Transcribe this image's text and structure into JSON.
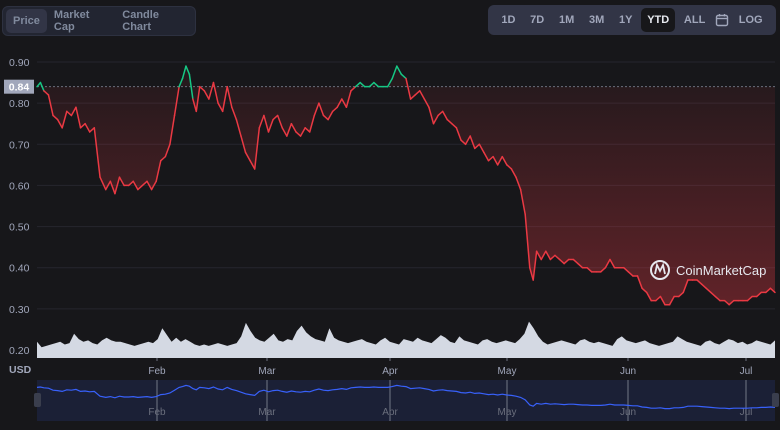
{
  "tabs": [
    {
      "label": "Price",
      "active": true
    },
    {
      "label": "Market Cap",
      "active": false
    },
    {
      "label": "Candle Chart",
      "active": false
    }
  ],
  "ranges": [
    {
      "label": "1D",
      "active": false
    },
    {
      "label": "7D",
      "active": false
    },
    {
      "label": "1M",
      "active": false
    },
    {
      "label": "3M",
      "active": false
    },
    {
      "label": "1Y",
      "active": false
    },
    {
      "label": "YTD",
      "active": true
    },
    {
      "label": "ALL",
      "active": false
    },
    {
      "label": "calendar-icon",
      "icon": true
    },
    {
      "label": "LOG",
      "active": false
    }
  ],
  "current_price_label": "0.84",
  "currency_label": "USD",
  "watermark": "CoinMarketCap",
  "colors": {
    "up": "#16c784",
    "down": "#ea3943",
    "volume": "#d4d9e3",
    "navigator_line": "#3861fb",
    "navigator_bg": "#1b2036"
  },
  "chart_data": {
    "type": "line",
    "title": "",
    "xlabel": "",
    "ylabel": "USD",
    "y_ticks": [
      "0.90",
      "0.80",
      "0.70",
      "0.60",
      "0.50",
      "0.40",
      "0.30",
      "0.20"
    ],
    "x_ticks": [
      "Feb",
      "Mar",
      "Apr",
      "May",
      "Jun",
      "Jul"
    ],
    "ylim": [
      0.19,
      0.92
    ],
    "baseline": 0.84,
    "grid": true,
    "series": [
      {
        "name": "Price",
        "points": [
          [
            0,
            0.84
          ],
          [
            3,
            0.85
          ],
          [
            6,
            0.83
          ],
          [
            10,
            0.82
          ],
          [
            14,
            0.77
          ],
          [
            18,
            0.76
          ],
          [
            22,
            0.74
          ],
          [
            26,
            0.78
          ],
          [
            30,
            0.77
          ],
          [
            34,
            0.79
          ],
          [
            38,
            0.74
          ],
          [
            42,
            0.75
          ],
          [
            46,
            0.73
          ],
          [
            50,
            0.74
          ],
          [
            55,
            0.62
          ],
          [
            60,
            0.59
          ],
          [
            64,
            0.61
          ],
          [
            68,
            0.58
          ],
          [
            72,
            0.62
          ],
          [
            76,
            0.6
          ],
          [
            80,
            0.6
          ],
          [
            84,
            0.61
          ],
          [
            88,
            0.59
          ],
          [
            92,
            0.6
          ],
          [
            96,
            0.61
          ],
          [
            100,
            0.59
          ],
          [
            104,
            0.61
          ],
          [
            108,
            0.66
          ],
          [
            112,
            0.67
          ],
          [
            116,
            0.7
          ],
          [
            120,
            0.77
          ],
          [
            124,
            0.84
          ],
          [
            127,
            0.86
          ],
          [
            130,
            0.89
          ],
          [
            133,
            0.87
          ],
          [
            136,
            0.81
          ],
          [
            139,
            0.78
          ],
          [
            142,
            0.84
          ],
          [
            146,
            0.83
          ],
          [
            150,
            0.81
          ],
          [
            154,
            0.85
          ],
          [
            158,
            0.8
          ],
          [
            162,
            0.78
          ],
          [
            166,
            0.84
          ],
          [
            170,
            0.79
          ],
          [
            174,
            0.76
          ],
          [
            178,
            0.72
          ],
          [
            182,
            0.68
          ],
          [
            186,
            0.66
          ],
          [
            190,
            0.64
          ],
          [
            194,
            0.74
          ],
          [
            198,
            0.77
          ],
          [
            202,
            0.73
          ],
          [
            206,
            0.76
          ],
          [
            210,
            0.77
          ],
          [
            214,
            0.74
          ],
          [
            218,
            0.72
          ],
          [
            222,
            0.75
          ],
          [
            226,
            0.73
          ],
          [
            230,
            0.72
          ],
          [
            234,
            0.74
          ],
          [
            238,
            0.73
          ],
          [
            242,
            0.77
          ],
          [
            246,
            0.8
          ],
          [
            250,
            0.77
          ],
          [
            254,
            0.76
          ],
          [
            258,
            0.78
          ],
          [
            262,
            0.79
          ],
          [
            266,
            0.81
          ],
          [
            270,
            0.79
          ],
          [
            274,
            0.83
          ],
          [
            278,
            0.84
          ],
          [
            282,
            0.85
          ],
          [
            286,
            0.84
          ],
          [
            290,
            0.84
          ],
          [
            294,
            0.85
          ],
          [
            298,
            0.84
          ],
          [
            302,
            0.84
          ],
          [
            306,
            0.84
          ],
          [
            310,
            0.86
          ],
          [
            314,
            0.89
          ],
          [
            318,
            0.87
          ],
          [
            322,
            0.86
          ],
          [
            326,
            0.81
          ],
          [
            330,
            0.82
          ],
          [
            334,
            0.83
          ],
          [
            338,
            0.81
          ],
          [
            342,
            0.79
          ],
          [
            346,
            0.75
          ],
          [
            350,
            0.77
          ],
          [
            354,
            0.78
          ],
          [
            358,
            0.76
          ],
          [
            362,
            0.75
          ],
          [
            366,
            0.74
          ],
          [
            370,
            0.71
          ],
          [
            374,
            0.7
          ],
          [
            378,
            0.72
          ],
          [
            382,
            0.69
          ],
          [
            386,
            0.7
          ],
          [
            390,
            0.68
          ],
          [
            394,
            0.66
          ],
          [
            398,
            0.67
          ],
          [
            402,
            0.65
          ],
          [
            406,
            0.67
          ],
          [
            410,
            0.65
          ],
          [
            414,
            0.64
          ],
          [
            418,
            0.62
          ],
          [
            422,
            0.59
          ],
          [
            426,
            0.53
          ],
          [
            430,
            0.4
          ],
          [
            433,
            0.37
          ],
          [
            436,
            0.44
          ],
          [
            440,
            0.42
          ],
          [
            444,
            0.44
          ],
          [
            448,
            0.42
          ],
          [
            452,
            0.43
          ],
          [
            456,
            0.42
          ],
          [
            460,
            0.41
          ],
          [
            464,
            0.42
          ],
          [
            468,
            0.42
          ],
          [
            472,
            0.41
          ],
          [
            476,
            0.4
          ],
          [
            480,
            0.4
          ],
          [
            484,
            0.39
          ],
          [
            488,
            0.39
          ],
          [
            492,
            0.39
          ],
          [
            496,
            0.4
          ],
          [
            500,
            0.42
          ],
          [
            504,
            0.4
          ],
          [
            508,
            0.4
          ],
          [
            512,
            0.4
          ],
          [
            516,
            0.39
          ],
          [
            520,
            0.38
          ],
          [
            524,
            0.38
          ],
          [
            528,
            0.35
          ],
          [
            532,
            0.34
          ],
          [
            536,
            0.32
          ],
          [
            540,
            0.32
          ],
          [
            544,
            0.33
          ],
          [
            548,
            0.31
          ],
          [
            552,
            0.31
          ],
          [
            556,
            0.33
          ],
          [
            560,
            0.33
          ],
          [
            564,
            0.34
          ],
          [
            568,
            0.37
          ],
          [
            572,
            0.37
          ],
          [
            576,
            0.37
          ],
          [
            580,
            0.36
          ],
          [
            584,
            0.35
          ],
          [
            588,
            0.34
          ],
          [
            592,
            0.33
          ],
          [
            596,
            0.32
          ],
          [
            600,
            0.32
          ],
          [
            604,
            0.31
          ],
          [
            608,
            0.32
          ],
          [
            612,
            0.32
          ],
          [
            616,
            0.32
          ],
          [
            620,
            0.32
          ],
          [
            624,
            0.33
          ],
          [
            628,
            0.33
          ],
          [
            632,
            0.34
          ],
          [
            636,
            0.34
          ],
          [
            640,
            0.35
          ],
          [
            644,
            0.34
          ]
        ]
      },
      {
        "name": "Volume",
        "values": [
          12,
          8,
          9,
          10,
          11,
          12,
          10,
          11,
          18,
          14,
          12,
          13,
          11,
          10,
          13,
          15,
          13,
          12,
          12,
          11,
          10,
          9,
          10,
          11,
          12,
          11,
          14,
          22,
          17,
          12,
          15,
          12,
          14,
          12,
          10,
          9,
          10,
          9,
          10,
          11,
          10,
          9,
          10,
          11,
          16,
          26,
          20,
          15,
          13,
          12,
          15,
          18,
          13,
          12,
          14,
          13,
          20,
          24,
          19,
          16,
          14,
          13,
          12,
          22,
          15,
          13,
          12,
          11,
          12,
          13,
          14,
          12,
          11,
          10,
          13,
          15,
          12,
          11,
          10,
          14,
          13,
          12,
          15,
          13,
          12,
          11,
          14,
          17,
          15,
          12,
          11,
          16,
          13,
          12,
          11,
          10,
          13,
          14,
          12,
          11,
          12,
          13,
          12,
          11,
          14,
          18,
          27,
          22,
          16,
          12,
          10,
          11,
          12,
          13,
          12,
          11,
          10,
          13,
          14,
          12,
          11,
          12,
          11,
          10,
          9,
          14,
          16,
          13,
          12,
          11,
          12,
          13,
          11,
          10,
          9,
          10,
          11,
          12,
          16,
          14,
          12,
          11,
          10,
          9,
          12,
          13,
          11,
          10,
          12,
          14,
          13,
          11,
          12,
          10,
          11,
          13,
          12,
          11,
          10,
          13
        ]
      }
    ]
  }
}
